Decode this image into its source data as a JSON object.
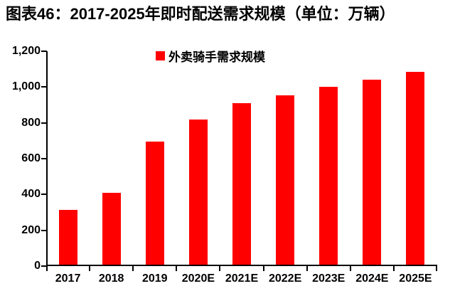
{
  "title": "图表46：2017-2025年即时配送需求规模（单位：万辆）",
  "colors": {
    "background": "#FFFFFF",
    "bar": "#FF0000",
    "axis": "#000000",
    "text": "#000000"
  },
  "chart_data": {
    "type": "bar",
    "title": "图表46：2017-2025年即时配送需求规模（单位：万辆）",
    "unit_label": "万辆",
    "xlabel": "",
    "ylabel": "",
    "grid": false,
    "legend_position": "top-center",
    "categories": [
      "2017",
      "2018",
      "2019",
      "2020E",
      "2021E",
      "2022E",
      "2023E",
      "2024E",
      "2025E"
    ],
    "series": [
      {
        "name": "外卖骑手需求规模",
        "color": "#FF0000",
        "values": [
          314,
          410,
          695,
          820,
          910,
          955,
          1000,
          1040,
          1085
        ]
      }
    ],
    "ylim": [
      0,
      1200
    ],
    "y_ticks": [
      {
        "value": 0,
        "label": "0"
      },
      {
        "value": 200,
        "label": "200"
      },
      {
        "value": 400,
        "label": "400"
      },
      {
        "value": 600,
        "label": "600"
      },
      {
        "value": 800,
        "label": "800"
      },
      {
        "value": 1000,
        "label": "1,000"
      },
      {
        "value": 1200,
        "label": "1,200"
      }
    ]
  }
}
